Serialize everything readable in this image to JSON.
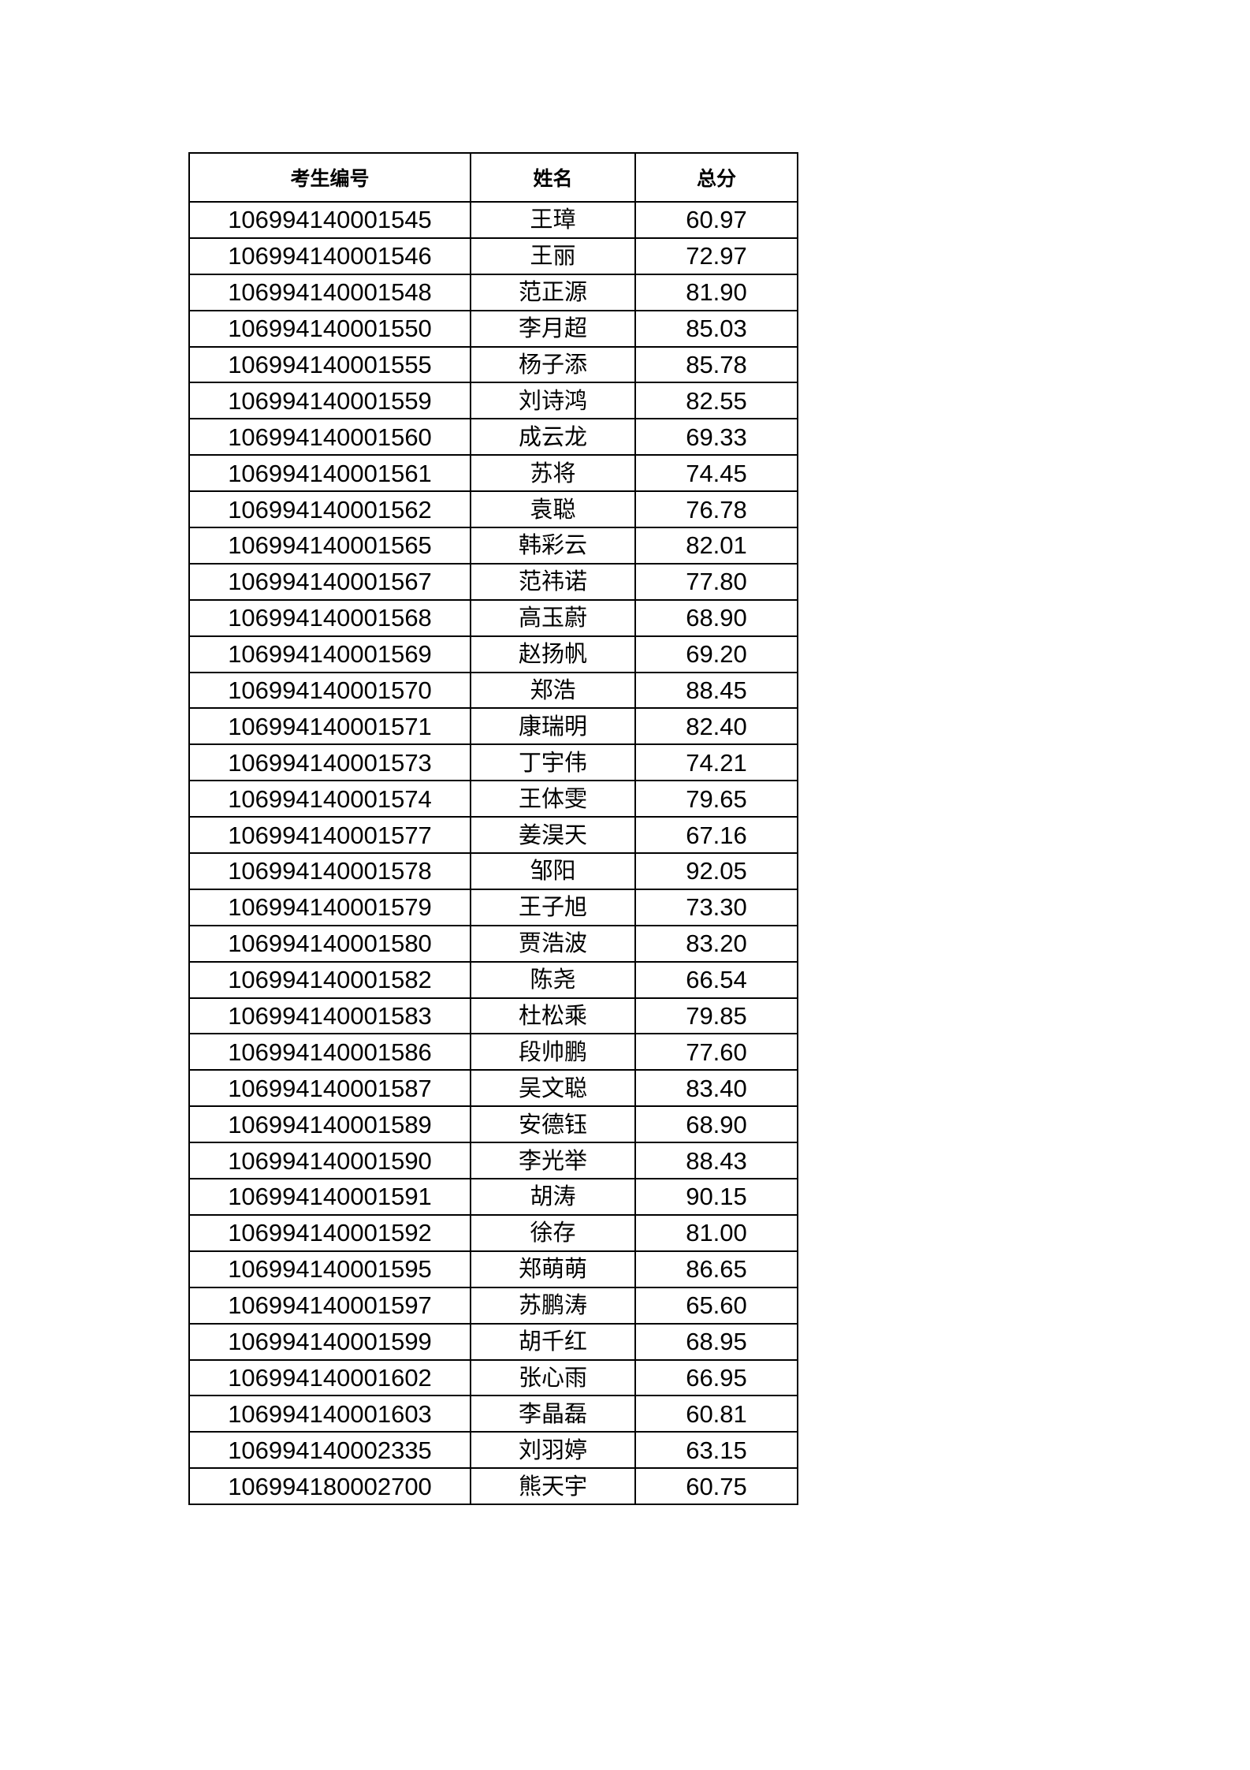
{
  "table": {
    "headers": [
      "考生编号",
      "姓名",
      "总分"
    ],
    "rows": [
      [
        "106994140001545",
        "王璋",
        "60.97"
      ],
      [
        "106994140001546",
        "王丽",
        "72.97"
      ],
      [
        "106994140001548",
        "范正源",
        "81.90"
      ],
      [
        "106994140001550",
        "李月超",
        "85.03"
      ],
      [
        "106994140001555",
        "杨子添",
        "85.78"
      ],
      [
        "106994140001559",
        "刘诗鸿",
        "82.55"
      ],
      [
        "106994140001560",
        "成云龙",
        "69.33"
      ],
      [
        "106994140001561",
        "苏将",
        "74.45"
      ],
      [
        "106994140001562",
        "袁聪",
        "76.78"
      ],
      [
        "106994140001565",
        "韩彩云",
        "82.01"
      ],
      [
        "106994140001567",
        "范祎诺",
        "77.80"
      ],
      [
        "106994140001568",
        "高玉蔚",
        "68.90"
      ],
      [
        "106994140001569",
        "赵扬帆",
        "69.20"
      ],
      [
        "106994140001570",
        "郑浩",
        "88.45"
      ],
      [
        "106994140001571",
        "康瑞明",
        "82.40"
      ],
      [
        "106994140001573",
        "丁宇伟",
        "74.21"
      ],
      [
        "106994140001574",
        "王体雯",
        "79.65"
      ],
      [
        "106994140001577",
        "姜淏天",
        "67.16"
      ],
      [
        "106994140001578",
        "邹阳",
        "92.05"
      ],
      [
        "106994140001579",
        "王子旭",
        "73.30"
      ],
      [
        "106994140001580",
        "贾浩波",
        "83.20"
      ],
      [
        "106994140001582",
        "陈尧",
        "66.54"
      ],
      [
        "106994140001583",
        "杜松乘",
        "79.85"
      ],
      [
        "106994140001586",
        "段帅鹏",
        "77.60"
      ],
      [
        "106994140001587",
        "吴文聪",
        "83.40"
      ],
      [
        "106994140001589",
        "安德钰",
        "68.90"
      ],
      [
        "106994140001590",
        "李光举",
        "88.43"
      ],
      [
        "106994140001591",
        "胡涛",
        "90.15"
      ],
      [
        "106994140001592",
        "徐存",
        "81.00"
      ],
      [
        "106994140001595",
        "郑萌萌",
        "86.65"
      ],
      [
        "106994140001597",
        "苏鹏涛",
        "65.60"
      ],
      [
        "106994140001599",
        "胡千红",
        "68.95"
      ],
      [
        "106994140001602",
        "张心雨",
        "66.95"
      ],
      [
        "106994140001603",
        "李晶磊",
        "60.81"
      ],
      [
        "106994140002335",
        "刘羽婷",
        "63.15"
      ],
      [
        "106994180002700",
        "熊天宇",
        "60.75"
      ]
    ]
  }
}
